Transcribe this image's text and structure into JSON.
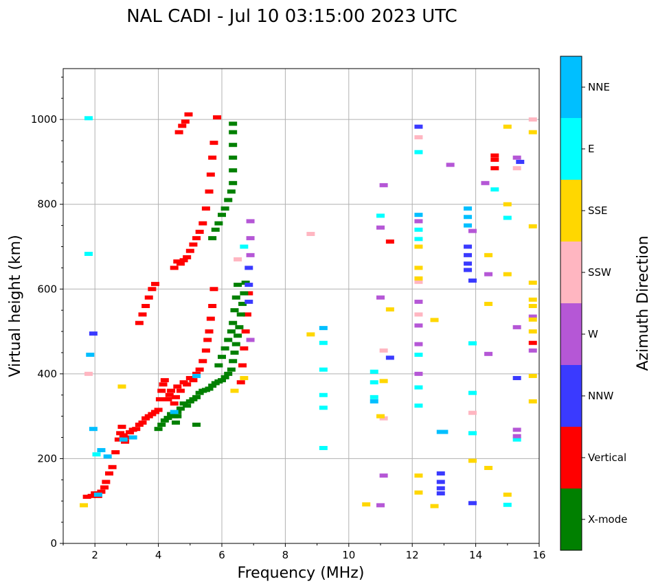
{
  "chart_data": {
    "type": "scatter",
    "title": "NAL CADI - Jul 10 03:15:00 2023 UTC",
    "xlabel": "Frequency (MHz)",
    "ylabel": "Virtual height (km)",
    "xlim": [
      1,
      16
    ],
    "ylim": [
      0,
      1120
    ],
    "xticks": [
      "2",
      "4",
      "6",
      "8",
      "10",
      "12",
      "14",
      "16"
    ],
    "yticks": [
      "0",
      "200",
      "400",
      "600",
      "800",
      "1000"
    ],
    "grid": true,
    "colorbar": {
      "label": "Azimuth Direction",
      "categories": [
        {
          "name": "X-mode",
          "color": "#008000"
        },
        {
          "name": "Vertical",
          "color": "#ff0000"
        },
        {
          "name": "NNW",
          "color": "#3a3aff"
        },
        {
          "name": "W",
          "color": "#b557d6"
        },
        {
          "name": "SSW",
          "color": "#ffb6c1"
        },
        {
          "name": "SSE",
          "color": "#ffd700"
        },
        {
          "name": "E",
          "color": "#00ffff"
        },
        {
          "name": "NNE",
          "color": "#00bfff"
        }
      ]
    },
    "series": [
      {
        "name": "Vertical",
        "points": [
          [
            1.75,
            110
          ],
          [
            1.9,
            112
          ],
          [
            2.0,
            118
          ],
          [
            2.1,
            112
          ],
          [
            2.2,
            122
          ],
          [
            2.3,
            132
          ],
          [
            2.35,
            145
          ],
          [
            2.45,
            165
          ],
          [
            2.55,
            180
          ],
          [
            2.65,
            215
          ],
          [
            2.75,
            245
          ],
          [
            2.8,
            260
          ],
          [
            2.85,
            275
          ],
          [
            2.9,
            255
          ],
          [
            2.95,
            240
          ],
          [
            3.0,
            250
          ],
          [
            3.1,
            262
          ],
          [
            3.2,
            268
          ],
          [
            3.3,
            270
          ],
          [
            3.4,
            280
          ],
          [
            3.5,
            285
          ],
          [
            3.6,
            295
          ],
          [
            3.7,
            300
          ],
          [
            3.8,
            305
          ],
          [
            3.9,
            310
          ],
          [
            4.0,
            315
          ],
          [
            4.05,
            340
          ],
          [
            4.1,
            360
          ],
          [
            4.15,
            375
          ],
          [
            4.2,
            385
          ],
          [
            4.3,
            340
          ],
          [
            4.35,
            350
          ],
          [
            4.4,
            360
          ],
          [
            4.5,
            330
          ],
          [
            4.55,
            345
          ],
          [
            4.6,
            370
          ],
          [
            4.7,
            360
          ],
          [
            4.8,
            380
          ],
          [
            4.9,
            375
          ],
          [
            5.0,
            390
          ],
          [
            5.1,
            385
          ],
          [
            5.2,
            400
          ],
          [
            5.3,
            410
          ],
          [
            5.4,
            430
          ],
          [
            5.5,
            455
          ],
          [
            5.55,
            480
          ],
          [
            5.6,
            500
          ],
          [
            5.65,
            530
          ],
          [
            5.7,
            560
          ],
          [
            5.75,
            600
          ],
          [
            3.4,
            520
          ],
          [
            3.5,
            540
          ],
          [
            3.6,
            560
          ],
          [
            3.7,
            580
          ],
          [
            3.8,
            600
          ],
          [
            3.9,
            612
          ],
          [
            4.5,
            650
          ],
          [
            4.6,
            665
          ],
          [
            4.7,
            660
          ],
          [
            4.8,
            668
          ],
          [
            4.9,
            675
          ],
          [
            5.0,
            690
          ],
          [
            5.1,
            705
          ],
          [
            5.2,
            720
          ],
          [
            5.3,
            735
          ],
          [
            5.4,
            755
          ],
          [
            5.5,
            790
          ],
          [
            5.6,
            830
          ],
          [
            5.65,
            870
          ],
          [
            5.7,
            910
          ],
          [
            5.75,
            945
          ],
          [
            5.85,
            1005
          ],
          [
            4.65,
            970
          ],
          [
            4.75,
            985
          ],
          [
            4.85,
            995
          ],
          [
            4.95,
            1012
          ],
          [
            6.6,
            380
          ],
          [
            6.65,
            420
          ],
          [
            6.7,
            460
          ],
          [
            6.75,
            500
          ],
          [
            6.8,
            540
          ],
          [
            6.85,
            590
          ],
          [
            11.3,
            712
          ],
          [
            14.6,
            915
          ],
          [
            14.6,
            905
          ],
          [
            14.6,
            885
          ],
          [
            15.8,
            473
          ]
        ]
      },
      {
        "name": "X-mode",
        "points": [
          [
            4.0,
            270
          ],
          [
            4.1,
            280
          ],
          [
            4.2,
            290
          ],
          [
            4.3,
            296
          ],
          [
            4.4,
            305
          ],
          [
            4.5,
            300
          ],
          [
            4.6,
            310
          ],
          [
            4.7,
            318
          ],
          [
            4.8,
            330
          ],
          [
            4.9,
            325
          ],
          [
            5.0,
            335
          ],
          [
            5.1,
            340
          ],
          [
            5.2,
            345
          ],
          [
            5.3,
            355
          ],
          [
            5.4,
            360
          ],
          [
            5.5,
            362
          ],
          [
            5.6,
            365
          ],
          [
            5.7,
            372
          ],
          [
            5.8,
            378
          ],
          [
            5.9,
            382
          ],
          [
            6.0,
            385
          ],
          [
            6.1,
            392
          ],
          [
            6.2,
            400
          ],
          [
            6.3,
            410
          ],
          [
            6.35,
            430
          ],
          [
            6.4,
            450
          ],
          [
            6.45,
            470
          ],
          [
            6.5,
            490
          ],
          [
            6.55,
            510
          ],
          [
            6.6,
            540
          ],
          [
            6.65,
            565
          ],
          [
            6.7,
            590
          ],
          [
            6.75,
            615
          ],
          [
            5.2,
            280
          ],
          [
            4.6,
            300
          ],
          [
            4.55,
            285
          ],
          [
            5.7,
            720
          ],
          [
            5.8,
            740
          ],
          [
            5.9,
            755
          ],
          [
            6.0,
            775
          ],
          [
            6.1,
            790
          ],
          [
            6.2,
            810
          ],
          [
            6.3,
            830
          ],
          [
            6.35,
            850
          ],
          [
            6.35,
            880
          ],
          [
            6.35,
            910
          ],
          [
            6.35,
            940
          ],
          [
            6.35,
            970
          ],
          [
            6.35,
            990
          ],
          [
            5.9,
            420
          ],
          [
            6.0,
            440
          ],
          [
            6.1,
            460
          ],
          [
            6.2,
            480
          ],
          [
            6.3,
            500
          ],
          [
            6.35,
            520
          ],
          [
            6.4,
            550
          ],
          [
            6.45,
            580
          ],
          [
            6.5,
            610
          ]
        ]
      },
      {
        "name": "NNE",
        "points": [
          [
            1.95,
            270
          ],
          [
            2.2,
            220
          ],
          [
            2.4,
            205
          ],
          [
            1.85,
            445
          ],
          [
            2.9,
            245
          ],
          [
            3.2,
            250
          ],
          [
            4.5,
            310
          ],
          [
            5.2,
            395
          ],
          [
            9.2,
            508
          ],
          [
            12.9,
            263
          ],
          [
            13.0,
            263
          ],
          [
            13.75,
            790
          ],
          [
            13.75,
            770
          ],
          [
            13.75,
            750
          ],
          [
            2.1,
            115
          ],
          [
            12.2,
            775
          ],
          [
            10.8,
            335
          ]
        ]
      },
      {
        "name": "E",
        "points": [
          [
            1.8,
            1003
          ],
          [
            1.8,
            683
          ],
          [
            2.05,
            210
          ],
          [
            9.2,
            473
          ],
          [
            9.2,
            410
          ],
          [
            9.2,
            350
          ],
          [
            9.2,
            320
          ],
          [
            9.2,
            225
          ],
          [
            10.8,
            405
          ],
          [
            10.8,
            380
          ],
          [
            10.8,
            345
          ],
          [
            12.2,
            923
          ],
          [
            12.2,
            740
          ],
          [
            12.2,
            718
          ],
          [
            12.2,
            445
          ],
          [
            12.2,
            368
          ],
          [
            12.2,
            325
          ],
          [
            13.9,
            472
          ],
          [
            13.9,
            355
          ],
          [
            13.9,
            260
          ],
          [
            14.6,
            835
          ],
          [
            15.0,
            768
          ],
          [
            15.0,
            91
          ],
          [
            15.3,
            245
          ],
          [
            11.0,
            773
          ],
          [
            6.7,
            700
          ]
        ]
      },
      {
        "name": "NNW",
        "points": [
          [
            1.95,
            495
          ],
          [
            12.9,
            165
          ],
          [
            12.9,
            145
          ],
          [
            12.9,
            130
          ],
          [
            12.9,
            118
          ],
          [
            13.75,
            700
          ],
          [
            13.75,
            680
          ],
          [
            13.75,
            660
          ],
          [
            13.75,
            645
          ],
          [
            13.9,
            620
          ],
          [
            13.9,
            95
          ],
          [
            15.3,
            390
          ],
          [
            15.4,
            900
          ],
          [
            11.3,
            438
          ],
          [
            12.2,
            983
          ],
          [
            6.85,
            650
          ],
          [
            6.85,
            610
          ],
          [
            6.85,
            570
          ]
        ]
      },
      {
        "name": "W",
        "points": [
          [
            13.2,
            893
          ],
          [
            13.9,
            737
          ],
          [
            14.3,
            850
          ],
          [
            14.4,
            635
          ],
          [
            14.4,
            447
          ],
          [
            15.3,
            910
          ],
          [
            15.3,
            510
          ],
          [
            15.3,
            268
          ],
          [
            15.3,
            253
          ],
          [
            15.8,
            535
          ],
          [
            15.8,
            455
          ],
          [
            12.2,
            760
          ],
          [
            12.2,
            570
          ],
          [
            12.2,
            514
          ],
          [
            12.2,
            470
          ],
          [
            12.2,
            400
          ],
          [
            11.1,
            845
          ],
          [
            11.0,
            745
          ],
          [
            11.0,
            580
          ],
          [
            6.9,
            760
          ],
          [
            6.9,
            720
          ],
          [
            6.9,
            680
          ],
          [
            6.9,
            480
          ],
          [
            11.0,
            90
          ],
          [
            11.1,
            160
          ]
        ]
      },
      {
        "name": "SSW",
        "points": [
          [
            15.3,
            885
          ],
          [
            15.8,
            1000
          ],
          [
            12.2,
            958
          ],
          [
            12.2,
            617
          ],
          [
            12.2,
            540
          ],
          [
            11.1,
            455
          ],
          [
            11.1,
            295
          ],
          [
            8.8,
            730
          ],
          [
            13.9,
            308
          ],
          [
            6.5,
            670
          ],
          [
            1.8,
            400
          ]
        ]
      },
      {
        "name": "SSE",
        "points": [
          [
            15.0,
            983
          ],
          [
            15.0,
            800
          ],
          [
            15.0,
            635
          ],
          [
            15.0,
            115
          ],
          [
            14.4,
            680
          ],
          [
            14.4,
            565
          ],
          [
            14.4,
            178
          ],
          [
            15.8,
            970
          ],
          [
            15.8,
            748
          ],
          [
            15.8,
            615
          ],
          [
            15.8,
            575
          ],
          [
            15.8,
            560
          ],
          [
            15.8,
            528
          ],
          [
            15.8,
            500
          ],
          [
            15.8,
            395
          ],
          [
            15.8,
            335
          ],
          [
            12.7,
            527
          ],
          [
            12.7,
            88
          ],
          [
            12.2,
            700
          ],
          [
            12.2,
            650
          ],
          [
            12.2,
            625
          ],
          [
            12.2,
            160
          ],
          [
            12.2,
            120
          ],
          [
            11.3,
            552
          ],
          [
            11.1,
            383
          ],
          [
            11.0,
            300
          ],
          [
            13.9,
            195
          ],
          [
            10.55,
            92
          ],
          [
            6.7,
            390
          ],
          [
            6.4,
            360
          ],
          [
            8.8,
            493
          ],
          [
            1.65,
            90
          ],
          [
            2.85,
            370
          ]
        ]
      }
    ]
  }
}
